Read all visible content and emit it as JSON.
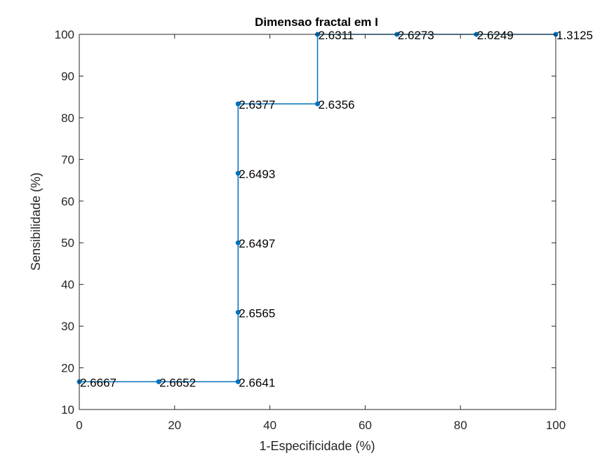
{
  "chart_data": {
    "type": "line",
    "title": "Dimensao fractal em I",
    "xlabel": "1-Especificidade (%)",
    "ylabel": "Sensibilidade (%)",
    "xlim": [
      0,
      100
    ],
    "ylim": [
      10,
      100
    ],
    "xticks": [
      0,
      20,
      40,
      60,
      80,
      100
    ],
    "yticks": [
      10,
      20,
      30,
      40,
      50,
      60,
      70,
      80,
      90,
      100
    ],
    "grid": false,
    "line_color": "#0072BD",
    "label_color": "#000000",
    "points": [
      {
        "x": 0,
        "y": 16.67,
        "label": "2.6667"
      },
      {
        "x": 16.67,
        "y": 16.67,
        "label": "2.6652"
      },
      {
        "x": 33.33,
        "y": 16.67,
        "label": "2.6641"
      },
      {
        "x": 33.33,
        "y": 33.33,
        "label": "2.6565"
      },
      {
        "x": 33.33,
        "y": 50,
        "label": "2.6497"
      },
      {
        "x": 33.33,
        "y": 66.67,
        "label": "2.6493"
      },
      {
        "x": 33.33,
        "y": 83.33,
        "label": "2.6377"
      },
      {
        "x": 50,
        "y": 83.33,
        "label": "2.6356"
      },
      {
        "x": 50,
        "y": 100,
        "label": "2.6311"
      },
      {
        "x": 66.67,
        "y": 100,
        "label": "2.6273"
      },
      {
        "x": 83.33,
        "y": 100,
        "label": "2.6249"
      },
      {
        "x": 100,
        "y": 100,
        "label": "1.3125"
      }
    ]
  }
}
